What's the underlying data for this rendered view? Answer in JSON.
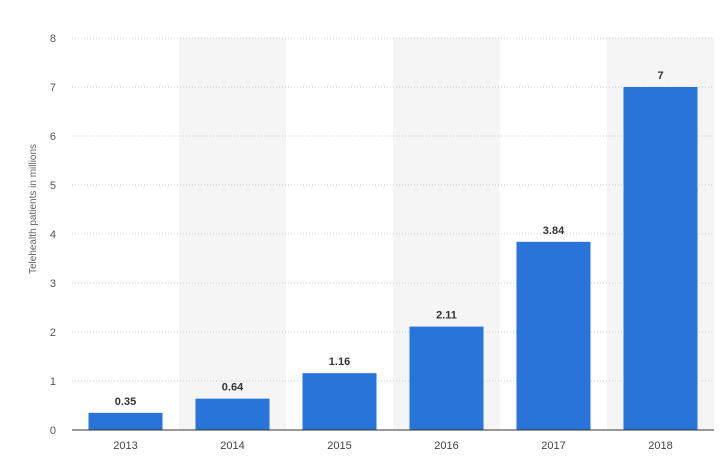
{
  "chart_data": {
    "type": "bar",
    "categories": [
      "2013",
      "2014",
      "2015",
      "2016",
      "2017",
      "2018"
    ],
    "values": [
      0.35,
      0.64,
      1.16,
      2.11,
      3.84,
      7
    ],
    "data_labels": [
      "0.35",
      "0.64",
      "1.16",
      "2.11",
      "3.84",
      "7"
    ],
    "title": "",
    "xlabel": "",
    "ylabel": "Telehealth patients in millions",
    "ylim": [
      0,
      8
    ],
    "yticks": [
      0,
      1,
      2,
      3,
      4,
      5,
      6,
      7,
      8
    ],
    "grid": true,
    "legend": "none",
    "colors": {
      "bar": "#2874d9",
      "band": "#f5f5f5",
      "grid": "#cccccc",
      "axis": "#333333"
    }
  }
}
